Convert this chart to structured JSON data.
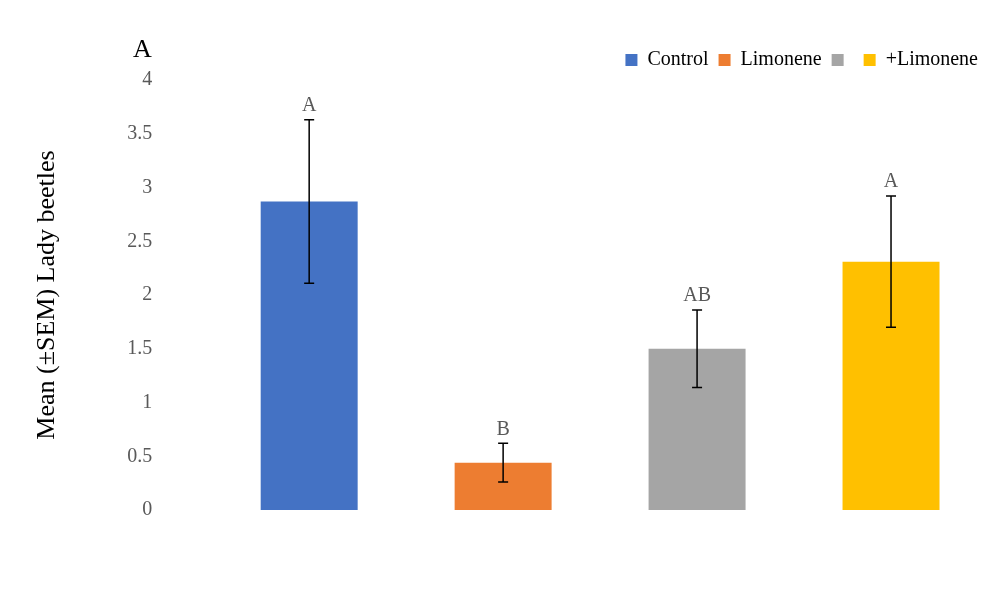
{
  "chart_data": {
    "type": "bar",
    "title": "A",
    "ylabel": "Mean (±SEM) Lady beetles",
    "categories": [
      null,
      null,
      null,
      null
    ],
    "stacked": true,
    "series": [
      {
        "name": "Control",
        "color": "#4472c4",
        "values": [
          2.87,
          null,
          null,
          null
        ],
        "errors": [
          0.76,
          null,
          null,
          null
        ]
      },
      {
        "name": "Limonene",
        "color": "#ed7d31",
        "values": [
          null,
          0.44,
          null,
          null
        ],
        "errors": [
          null,
          0.18,
          null,
          null
        ]
      },
      {
        "color": "#a5a5a5",
        "values": [
          null,
          null,
          1.5,
          null
        ],
        "errors": [
          null,
          null,
          0.36,
          null
        ]
      },
      {
        "name": "+Limonene",
        "color": "#ffc000",
        "values": [
          null,
          null,
          null,
          2.31
        ],
        "errors": [
          null,
          null,
          null,
          0.61
        ]
      }
    ],
    "annotations": [
      "A",
      "B",
      "AB",
      "A"
    ],
    "ylim": [
      0,
      4
    ],
    "yticks": [
      0,
      0.5,
      1,
      1.5,
      2,
      2.5,
      3,
      3.5,
      4
    ],
    "grid": false,
    "legend": "top right"
  }
}
